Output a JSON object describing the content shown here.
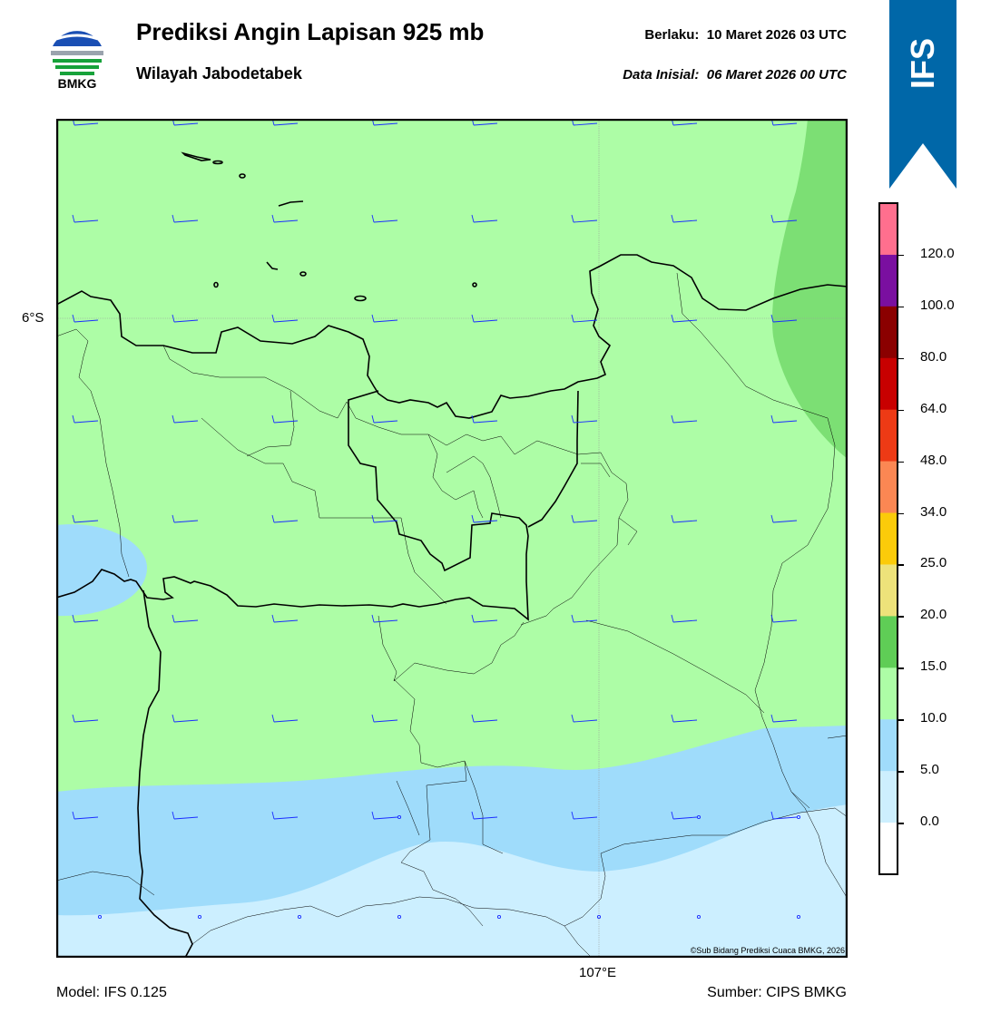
{
  "header": {
    "logo_text": "BMKG",
    "title": "Prediksi Angin Lapisan 925 mb",
    "subtitle": "Wilayah Jabodetabek",
    "valid_label": "Berlaku:",
    "valid_value": "10 Maret 2026 03 UTC",
    "init_label": "Data Inisial:",
    "init_value": "06 Maret 2026 00 UTC"
  },
  "ribbon": {
    "label": "IFS",
    "color": "#0067a8"
  },
  "map": {
    "lat_label": "6°S",
    "lon_label": "107°E",
    "credit": "©Sub Bidang Prediksi Cuaca BMKG, 2026",
    "zone_colors": {
      "0-5": "#ccefff",
      "5-10": "#9fdcfb",
      "10-15": "#adfda6",
      "15-20": "#7cdf74"
    }
  },
  "colorbar": {
    "ticks": [
      "0.0",
      "5.0",
      "10.0",
      "15.0",
      "20.0",
      "25.0",
      "34.0",
      "48.0",
      "64.0",
      "80.0",
      "100.0",
      "120.0"
    ],
    "colors": [
      "#ffffff",
      "#cdeffe",
      "#a0dcfb",
      "#adfda6",
      "#5fcd56",
      "#ede27a",
      "#fbcb0a",
      "#fb8753",
      "#ed3a15",
      "#c80000",
      "#8b0000",
      "#7a0fa0",
      "#ff6f8e"
    ]
  },
  "footer": {
    "model": "Model: IFS 0.125",
    "source": "Sumber: CIPS BMKG"
  }
}
